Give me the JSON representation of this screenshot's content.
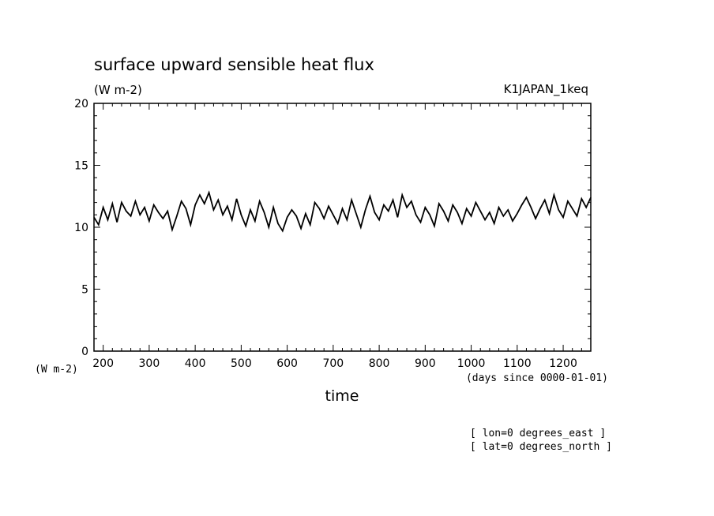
{
  "chart_data": {
    "type": "line",
    "title": "surface upward sensible heat flux",
    "units": "(W m-2)",
    "dataset": "K1JAPAN_1keq",
    "xlabel": "time",
    "xunits": "(days since 0000-01-01)",
    "ylabel_units": "(W m-2)",
    "xlim": [
      180,
      1260
    ],
    "ylim": [
      0,
      20
    ],
    "xticks": [
      200,
      300,
      400,
      500,
      600,
      700,
      800,
      900,
      1000,
      1100,
      1200
    ],
    "yticks": [
      0,
      5,
      10,
      15,
      20
    ],
    "grid": false,
    "annotations": [
      "[ lon=0 degrees_east ]",
      "[ lat=0 degrees_north ]"
    ],
    "series": [
      {
        "x": [
          180,
          190,
          200,
          210,
          220,
          230,
          240,
          250,
          260,
          270,
          280,
          290,
          300,
          310,
          320,
          330,
          340,
          350,
          360,
          370,
          380,
          390,
          400,
          410,
          420,
          430,
          440,
          450,
          460,
          470,
          480,
          490,
          500,
          510,
          520,
          530,
          540,
          550,
          560,
          570,
          580,
          590,
          600,
          610,
          620,
          630,
          640,
          650,
          660,
          670,
          680,
          690,
          700,
          710,
          720,
          730,
          740,
          750,
          760,
          770,
          780,
          790,
          800,
          810,
          820,
          830,
          840,
          850,
          860,
          870,
          880,
          890,
          900,
          910,
          920,
          930,
          940,
          950,
          960,
          970,
          980,
          990,
          1000,
          1010,
          1020,
          1030,
          1040,
          1050,
          1060,
          1070,
          1080,
          1090,
          1100,
          1110,
          1120,
          1130,
          1140,
          1150,
          1160,
          1170,
          1180,
          1190,
          1200,
          1210,
          1220,
          1230,
          1240,
          1250,
          1260
        ],
        "values": [
          10.8,
          10.2,
          11.6,
          10.6,
          11.9,
          10.4,
          12.0,
          11.3,
          10.9,
          12.1,
          11.0,
          11.6,
          10.5,
          11.8,
          11.2,
          10.7,
          11.3,
          9.8,
          10.9,
          12.1,
          11.5,
          10.2,
          11.8,
          12.6,
          11.9,
          12.8,
          11.4,
          12.2,
          11.0,
          11.7,
          10.6,
          12.3,
          11.0,
          10.1,
          11.4,
          10.5,
          12.1,
          11.2,
          10.0,
          11.6,
          10.3,
          9.7,
          10.8,
          11.4,
          10.9,
          9.9,
          11.1,
          10.2,
          12.0,
          11.5,
          10.7,
          11.7,
          11.0,
          10.3,
          11.5,
          10.6,
          12.2,
          11.1,
          10.0,
          11.4,
          12.5,
          11.2,
          10.6,
          11.8,
          11.3,
          12.2,
          10.8,
          12.6,
          11.6,
          12.1,
          11.0,
          10.4,
          11.6,
          11.0,
          10.1,
          11.9,
          11.3,
          10.5,
          11.8,
          11.2,
          10.3,
          11.5,
          10.9,
          12.0,
          11.3,
          10.6,
          11.2,
          10.3,
          11.6,
          10.9,
          11.4,
          10.5,
          11.1,
          11.8,
          12.4,
          11.6,
          10.7,
          11.5,
          12.2,
          11.1,
          12.6,
          11.4,
          10.8,
          12.1,
          11.5,
          10.9,
          12.3,
          11.6,
          12.4
        ]
      }
    ]
  }
}
